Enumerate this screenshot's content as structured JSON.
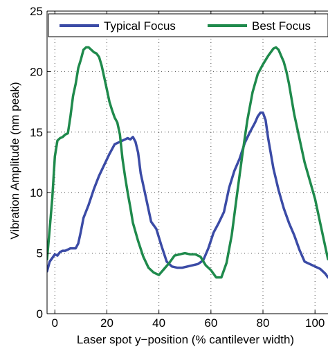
{
  "chart_data": {
    "type": "line",
    "title": "",
    "xlabel": "Laser spot y−position (% cantilever width)",
    "ylabel": "Vibration Amplitude (nm peak)",
    "xlim": [
      -3,
      105
    ],
    "ylim": [
      0,
      25
    ],
    "xticks": [
      0,
      20,
      40,
      60,
      80,
      100
    ],
    "yticks": [
      0,
      5,
      10,
      15,
      20,
      25
    ],
    "grid": true,
    "legend_position": "top",
    "series": [
      {
        "name": "Typical Focus",
        "color": "#3b4ba6",
        "x": [
          -3,
          -2,
          0,
          1,
          2,
          3,
          4,
          5,
          6,
          7,
          8,
          9,
          10,
          11,
          13,
          15,
          17,
          19,
          21,
          23,
          25,
          26,
          27,
          28,
          29,
          30,
          31,
          32,
          33,
          35,
          37,
          39,
          41,
          43,
          45,
          47,
          49,
          51,
          53,
          55,
          57,
          59,
          61,
          63,
          65,
          67,
          69,
          71,
          73,
          75,
          77,
          78,
          79,
          80,
          81,
          82,
          84,
          86,
          88,
          90,
          92,
          94,
          96,
          98,
          100,
          102,
          103,
          104,
          105
        ],
        "y": [
          3.5,
          4.3,
          4.9,
          4.8,
          5.1,
          5.2,
          5.2,
          5.3,
          5.4,
          5.4,
          5.4,
          5.8,
          6.8,
          7.9,
          9.0,
          10.3,
          11.4,
          12.3,
          13.2,
          14.0,
          14.2,
          14.3,
          14.4,
          14.5,
          14.4,
          14.6,
          14.2,
          13.3,
          11.6,
          9.6,
          7.6,
          7.0,
          5.6,
          4.3,
          3.9,
          3.8,
          3.8,
          3.9,
          4.0,
          4.1,
          4.4,
          5.4,
          6.7,
          7.5,
          8.4,
          10.4,
          11.8,
          12.8,
          14.1,
          15.0,
          15.8,
          16.3,
          16.6,
          16.6,
          16.0,
          14.5,
          12.0,
          10.2,
          8.7,
          7.5,
          6.5,
          5.3,
          4.3,
          4.1,
          3.9,
          3.7,
          3.5,
          3.3,
          3.0
        ]
      },
      {
        "name": "Best Focus",
        "color": "#1f8a4c",
        "x": [
          -3,
          -2,
          -1,
          0,
          1,
          2,
          3,
          4,
          5,
          6,
          7,
          8,
          9,
          10,
          11,
          12,
          13,
          14,
          15,
          16,
          17,
          18,
          19,
          20,
          21,
          22,
          23,
          24,
          25,
          26,
          27,
          28,
          29,
          30,
          32,
          34,
          36,
          38,
          40,
          42,
          44,
          46,
          48,
          50,
          52,
          54,
          56,
          58,
          60,
          62,
          64,
          66,
          68,
          70,
          72,
          74,
          76,
          78,
          80,
          82,
          84,
          85,
          86,
          87,
          88,
          89,
          90,
          92,
          94,
          96,
          98,
          100,
          102,
          104,
          105
        ],
        "y": [
          4.5,
          7.0,
          9.5,
          13.0,
          14.3,
          14.5,
          14.6,
          14.8,
          14.9,
          16.3,
          18.0,
          19.0,
          20.3,
          21.0,
          21.8,
          22.0,
          22.0,
          21.8,
          21.6,
          21.5,
          21.2,
          20.5,
          19.5,
          18.5,
          17.5,
          16.8,
          16.2,
          15.8,
          14.8,
          12.8,
          11.3,
          10.0,
          8.8,
          7.5,
          6.0,
          4.7,
          3.8,
          3.4,
          3.2,
          3.7,
          4.2,
          4.8,
          4.9,
          5.0,
          4.9,
          4.9,
          4.7,
          4.0,
          3.6,
          3.0,
          3.0,
          4.2,
          6.5,
          9.8,
          13.0,
          16.0,
          18.3,
          19.8,
          20.6,
          21.3,
          21.9,
          22.0,
          21.8,
          21.3,
          20.8,
          20.0,
          19.0,
          16.5,
          14.5,
          12.5,
          11.0,
          9.5,
          7.5,
          5.5,
          4.5
        ]
      }
    ]
  }
}
